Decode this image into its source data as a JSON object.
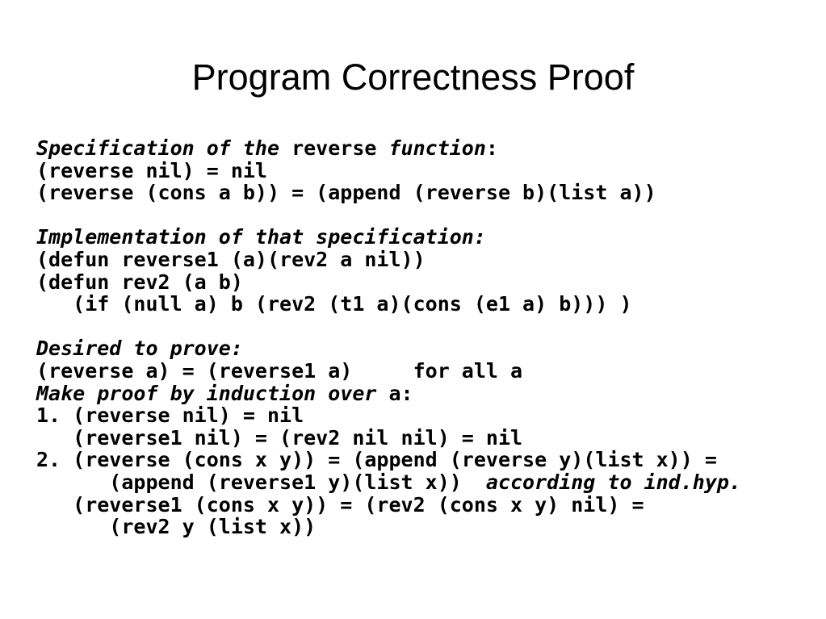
{
  "slide": {
    "title": "Program Correctness Proof",
    "background_color": "#ffffff",
    "text_color": "#000000"
  },
  "code_lines": [
    {
      "segments": [
        {
          "text": "Specification of the ",
          "style": "bi"
        },
        {
          "text": "reverse",
          "style": "b"
        },
        {
          "text": " function",
          "style": "bi"
        },
        {
          "text": ":",
          "style": "b"
        }
      ]
    },
    {
      "segments": [
        {
          "text": "(reverse nil) = nil",
          "style": "b"
        }
      ]
    },
    {
      "segments": [
        {
          "text": "(reverse (cons a b)) = (append (reverse b)(list a))",
          "style": "b"
        }
      ]
    },
    {
      "segments": []
    },
    {
      "segments": [
        {
          "text": "Implementation of that specification:",
          "style": "bi"
        }
      ]
    },
    {
      "segments": [
        {
          "text": "(defun reverse1 (a)(rev2 a nil))",
          "style": "b"
        }
      ]
    },
    {
      "segments": [
        {
          "text": "(defun rev2 (a b)",
          "style": "b"
        }
      ]
    },
    {
      "segments": [
        {
          "text": "   (if (null a) b (rev2 (t1 a)(cons (e1 a) b))) )",
          "style": "b"
        }
      ]
    },
    {
      "segments": []
    },
    {
      "segments": [
        {
          "text": "Desired to prove:",
          "style": "bi"
        }
      ]
    },
    {
      "segments": [
        {
          "text": "(reverse a) = (reverse1 a)     for all a",
          "style": "b"
        }
      ]
    },
    {
      "segments": [
        {
          "text": "Make proof by induction over ",
          "style": "bi"
        },
        {
          "text": "a:",
          "style": "b"
        }
      ]
    },
    {
      "segments": [
        {
          "text": "1. (reverse nil) = nil",
          "style": "b"
        }
      ]
    },
    {
      "segments": [
        {
          "text": "   (reverse1 nil) = (rev2 nil nil) = nil",
          "style": "b"
        }
      ]
    },
    {
      "segments": [
        {
          "text": "2. (reverse (cons x y)) = (append (reverse y)(list x)) =",
          "style": "b"
        }
      ]
    },
    {
      "segments": [
        {
          "text": "      (append (reverse1 y)(list x))",
          "style": "b"
        },
        {
          "text": "  according to ind.hyp.",
          "style": "bi"
        }
      ]
    },
    {
      "segments": [
        {
          "text": "   (reverse1 (cons x y)) = (rev2 (cons x y) nil) =",
          "style": "b"
        }
      ]
    },
    {
      "segments": [
        {
          "text": "      (rev2 y (list x))",
          "style": "b"
        }
      ]
    }
  ]
}
